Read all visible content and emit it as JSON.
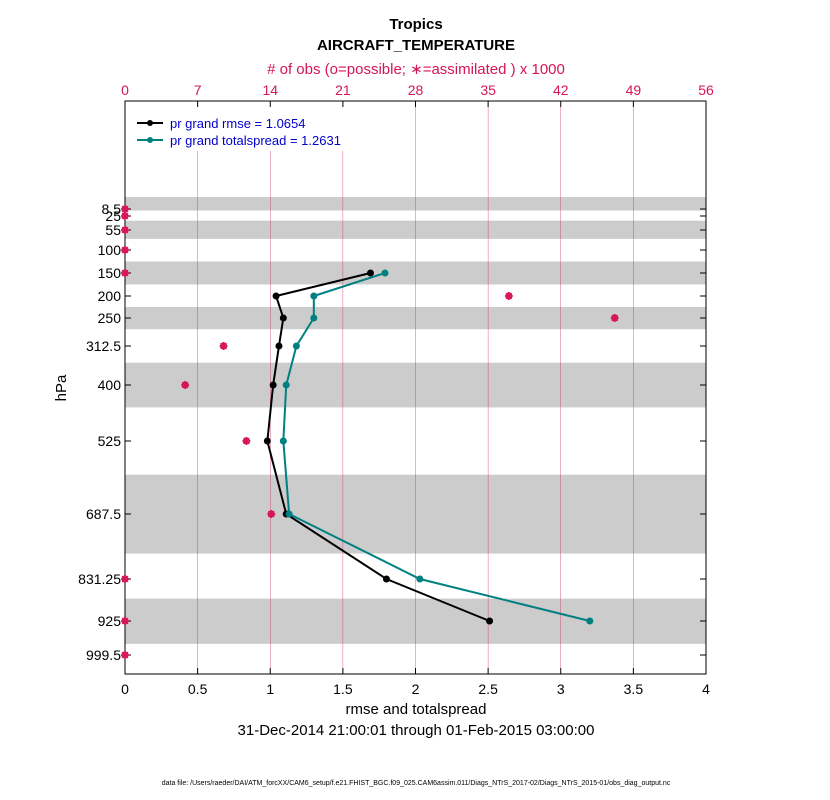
{
  "chart_data": {
    "type": "line",
    "title": "Tropics",
    "subtitle": "AIRCRAFT_TEMPERATURE",
    "top_axis_label": "# of obs (o=possible; ∗=assimilated ) x 1000",
    "top_axis": {
      "range": [
        0,
        56
      ],
      "ticks": [
        0,
        7,
        14,
        21,
        28,
        35,
        42,
        49,
        56
      ],
      "tick_labels": [
        "0",
        "7",
        "14",
        "21",
        "28",
        "35",
        "42",
        "49",
        "56"
      ]
    },
    "xlabel": "rmse and totalspread",
    "xlim": [
      0,
      4
    ],
    "x_ticks": [
      0,
      0.5,
      1,
      1.5,
      2,
      2.5,
      3,
      3.5,
      4
    ],
    "x_tick_labels": [
      "0",
      "0.5",
      "1",
      "1.5",
      "2",
      "2.5",
      "3",
      "3.5",
      "4"
    ],
    "ylabel": "hPa",
    "y_levels": [
      8.5,
      25,
      55,
      100,
      150,
      200,
      250,
      312.5,
      400,
      525,
      687.5,
      831.25,
      925,
      999.5
    ],
    "y_tick_labels": [
      "8.5",
      "25",
      "55",
      "100",
      "150",
      "200",
      "250",
      "312.5",
      "400",
      "525",
      "687.5",
      "831.25",
      "925",
      "999.5"
    ],
    "date_range": "31-Dec-2014 21:00:01 through 01-Feb-2015 03:00:00",
    "footer": "data file: /Users/raeder/DAI/ATM_forcXX/CAM6_setup/f.e21.FHIST_BGC.f09_025.CAM6assim.011/Diags_NTrS_2017-02/Diags_NTrS_2015-01/obs_diag_output.nc",
    "series": [
      {
        "name": "pr grand rmse = 1.0654",
        "color": "#000000",
        "levels": [
          150,
          200,
          250,
          312.5,
          400,
          525,
          687.5,
          831.25,
          925
        ],
        "values": [
          1.69,
          1.04,
          1.09,
          1.06,
          1.02,
          0.98,
          1.11,
          1.8,
          2.51
        ]
      },
      {
        "name": "pr grand totalspread = 1.2631",
        "color": "#008080",
        "levels": [
          150,
          200,
          250,
          312.5,
          400,
          525,
          687.5,
          831.25,
          925
        ],
        "values": [
          1.79,
          1.3,
          1.3,
          1.18,
          1.11,
          1.09,
          1.13,
          2.03,
          3.2
        ]
      }
    ],
    "obs_counts": {
      "color": "#d6145a",
      "levels": [
        8.5,
        25,
        55,
        100,
        150,
        200,
        250,
        312.5,
        400,
        525,
        687.5,
        831.25,
        925,
        999.5
      ],
      "possible": [
        0,
        0,
        0,
        0,
        0,
        37.0,
        47.2,
        9.5,
        5.8,
        11.7,
        14.1,
        0,
        0,
        0
      ],
      "assimilated": [
        0,
        0,
        0,
        0,
        0,
        37.0,
        47.2,
        9.5,
        5.8,
        11.7,
        14.1,
        0,
        0,
        0
      ]
    },
    "layer_bands_hPa": [
      [
        5,
        12
      ],
      [
        35,
        75
      ],
      [
        125,
        175
      ],
      [
        225,
        275
      ],
      [
        350,
        450
      ],
      [
        600,
        775
      ],
      [
        875,
        975
      ]
    ]
  }
}
